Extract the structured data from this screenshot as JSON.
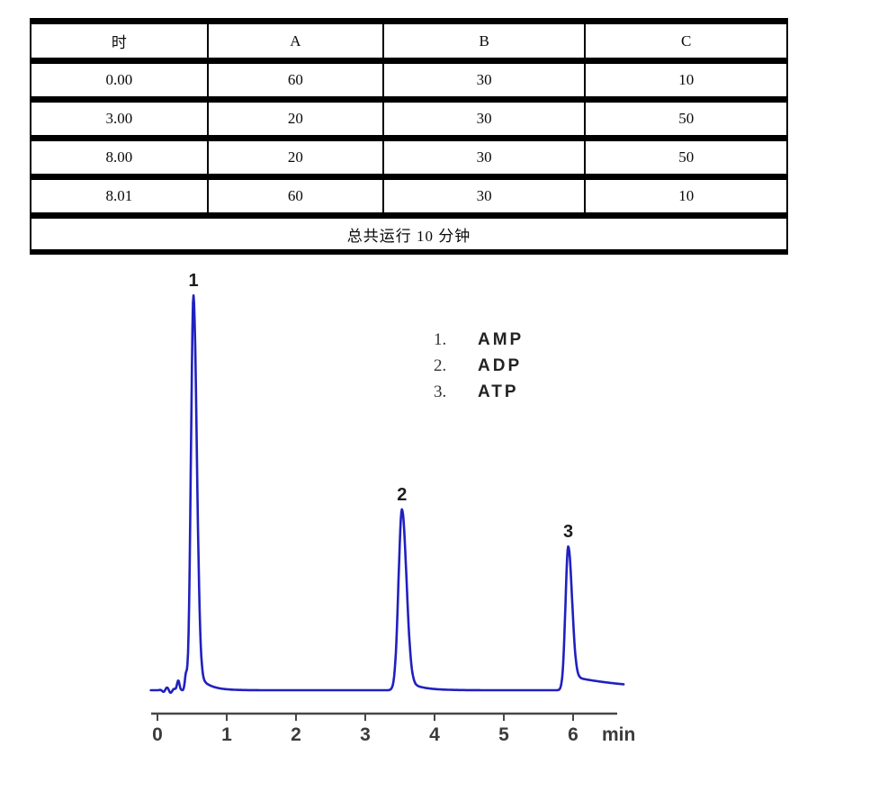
{
  "gradient_table": {
    "headers": [
      "时",
      "A",
      "B",
      "C"
    ],
    "rows": [
      [
        "0.00",
        "60",
        "30",
        "10"
      ],
      [
        "3.00",
        "20",
        "30",
        "50"
      ],
      [
        "8.00",
        "20",
        "30",
        "50"
      ],
      [
        "8.01",
        "60",
        "30",
        "10"
      ]
    ],
    "footer": "总共运行  10 分钟"
  },
  "legend": {
    "items": [
      {
        "marker": "1.",
        "name": "AMP"
      },
      {
        "marker": "2.",
        "name": "ADP"
      },
      {
        "marker": "3.",
        "name": "ATP"
      }
    ]
  },
  "chart_data": {
    "type": "line",
    "x_tick_labels": [
      "0",
      "1",
      "2",
      "3",
      "4",
      "5",
      "6"
    ],
    "x_unit": "min",
    "x_range": [
      -0.095,
      6.73
    ],
    "line_color": "#2020c0",
    "axis_color": "#474747",
    "tick_label_color": "#3b3b3b",
    "peak_label_color": "#1c1c1c",
    "peaks": [
      {
        "label": "1",
        "compound": "AMP",
        "retention_min": 0.52,
        "height_rel": 1.0,
        "sigma_left": 0.036,
        "sigma_right": 0.048,
        "tail_frac": 0.06,
        "tail_tau": 0.15
      },
      {
        "label": "2",
        "compound": "ADP",
        "retention_min": 3.53,
        "height_rel": 0.458,
        "sigma_left": 0.05,
        "sigma_right": 0.065,
        "tail_frac": 0.07,
        "tail_tau": 0.2
      },
      {
        "label": "3",
        "compound": "ATP",
        "retention_min": 5.93,
        "height_rel": 0.364,
        "sigma_left": 0.04,
        "sigma_right": 0.055,
        "tail_frac": 0.1,
        "tail_tau": 0.9
      }
    ],
    "baseline_noise": {
      "ripple_amplitude_rel": 0.007,
      "ripple_period_min": 0.11,
      "ripple_end_min": 0.32,
      "bumps": [
        {
          "t_min": 0.3,
          "height_rel": 0.025,
          "sigma_min": 0.018
        },
        {
          "t_min": 0.41,
          "height_rel": 0.035,
          "sigma_min": 0.015
        }
      ]
    }
  }
}
